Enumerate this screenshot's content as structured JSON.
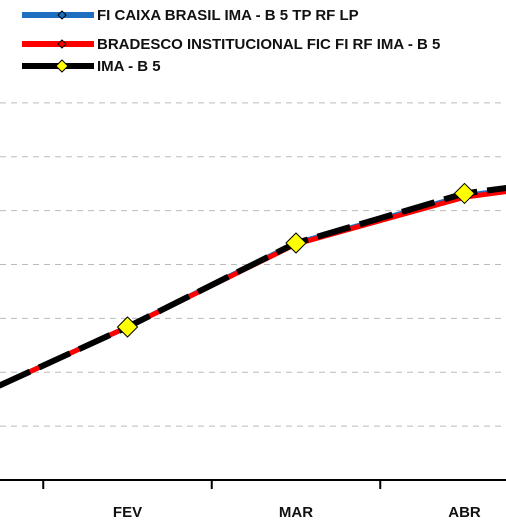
{
  "chart_data": {
    "type": "line",
    "categories": [
      null,
      "FEV",
      "MAR",
      "ABR",
      null
    ],
    "series": [
      {
        "name": "FI CAIXA BRASIL IMA - B 5 TP RF LP",
        "color": "#1f6fc0",
        "values": [
          1.41,
          2.84,
          4.4,
          5.28,
          5.7
        ]
      },
      {
        "name": "BRADESCO INSTITUCIONAL FIC FI RF IMA - B 5",
        "color": "#ff0000",
        "values": [
          1.41,
          2.84,
          4.38,
          5.25,
          5.67
        ]
      },
      {
        "name": "IMA - B 5",
        "color": "#000000",
        "marker_color": "#ffff00",
        "values": [
          1.41,
          2.84,
          4.4,
          5.32,
          5.73
        ]
      }
    ],
    "ylim": [
      0,
      7.5
    ],
    "yticks": [
      1,
      2,
      3,
      4,
      5,
      6,
      7
    ],
    "grid": true
  }
}
